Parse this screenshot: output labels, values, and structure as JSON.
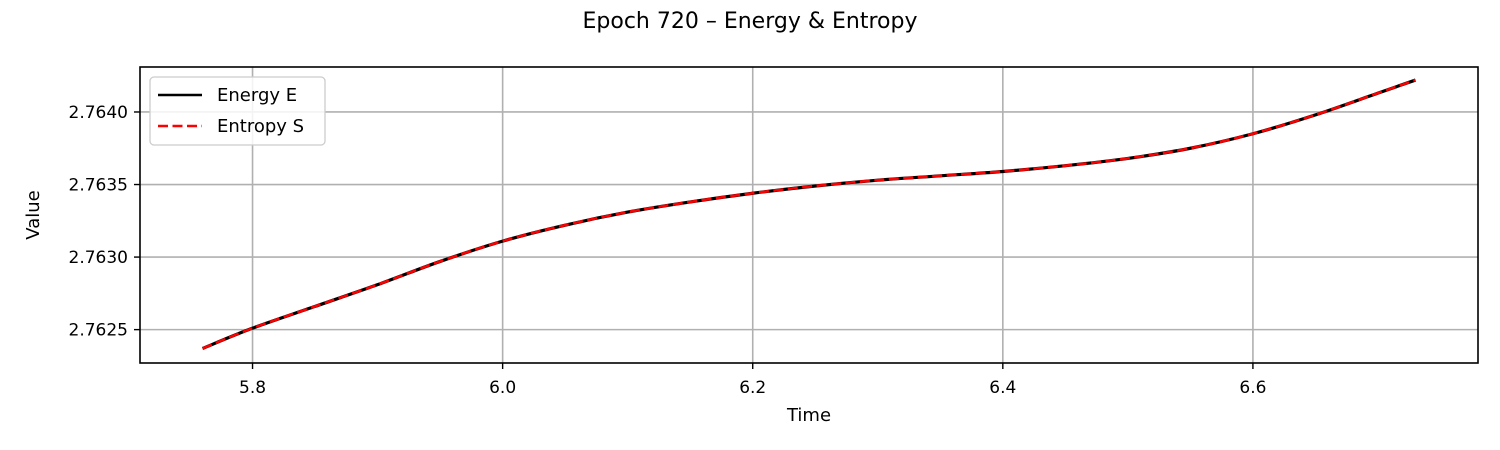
{
  "chart_data": {
    "type": "line",
    "title": "Epoch 720 – Energy & Entropy",
    "xlabel": "Time",
    "ylabel": "Value",
    "xlim": [
      5.71,
      6.78
    ],
    "ylim": [
      2.76227,
      2.76431
    ],
    "xticks": [
      5.8,
      6.0,
      6.2,
      6.4,
      6.6
    ],
    "xtick_labels": [
      "5.8",
      "6.0",
      "6.2",
      "6.4",
      "6.6"
    ],
    "yticks": [
      2.7625,
      2.763,
      2.7635,
      2.764
    ],
    "ytick_labels": [
      "2.7625",
      "2.7630",
      "2.7635",
      "2.7640"
    ],
    "grid": true,
    "legend_position": "top-left",
    "x": [
      5.76,
      5.8,
      5.85,
      5.9,
      5.95,
      6.0,
      6.05,
      6.1,
      6.15,
      6.2,
      6.25,
      6.3,
      6.35,
      6.4,
      6.45,
      6.5,
      6.55,
      6.6,
      6.65,
      6.7,
      6.73
    ],
    "series": [
      {
        "name": "Energy E",
        "color": "#000000",
        "style": "solid",
        "values": [
          2.76237,
          2.76251,
          2.76266,
          2.76281,
          2.76297,
          2.76311,
          2.76322,
          2.76331,
          2.76338,
          2.76344,
          2.76349,
          2.76353,
          2.76356,
          2.76359,
          2.76363,
          2.76368,
          2.76375,
          2.76385,
          2.76398,
          2.76413,
          2.76422
        ]
      },
      {
        "name": "Entropy S",
        "color": "#ff0000",
        "style": "dashed",
        "values": [
          2.76237,
          2.76251,
          2.76266,
          2.76281,
          2.76297,
          2.76311,
          2.76322,
          2.76331,
          2.76338,
          2.76344,
          2.76349,
          2.76353,
          2.76356,
          2.76359,
          2.76363,
          2.76368,
          2.76375,
          2.76385,
          2.76398,
          2.76413,
          2.76422
        ]
      }
    ]
  }
}
